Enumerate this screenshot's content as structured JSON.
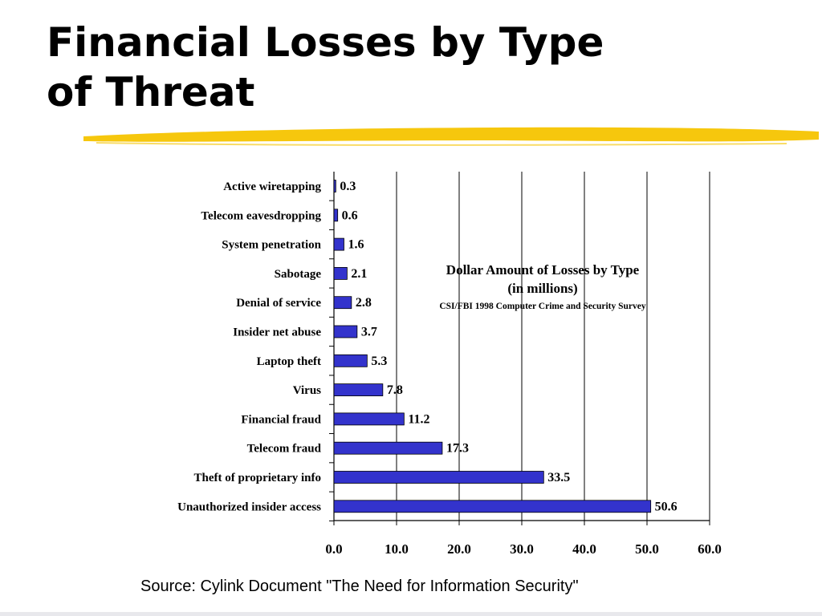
{
  "slide": {
    "title_line1": "Financial Losses by Type",
    "title_line2": "of Threat",
    "source": "Source: Cylink Document \"The Need for Information Security\"",
    "highlight_color": "#f5c400"
  },
  "chart_data": {
    "type": "bar",
    "orientation": "horizontal",
    "title": "Dollar Amount of Losses by Type",
    "subtitle": "(in millions)",
    "note": "CSI/FBI 1998 Computer Crime and Security Survey",
    "categories": [
      "Active wiretapping",
      "Telecom eavesdropping",
      "System penetration",
      "Sabotage",
      "Denial of service",
      "Insider net abuse",
      "Laptop theft",
      "Virus",
      "Financial fraud",
      "Telecom fraud",
      "Theft of proprietary info",
      "Unauthorized insider access"
    ],
    "values": [
      0.3,
      0.6,
      1.6,
      2.1,
      2.8,
      3.7,
      5.3,
      7.8,
      11.2,
      17.3,
      33.5,
      50.6
    ],
    "value_labels": [
      "0.3",
      "0.6",
      "1.6",
      "2.1",
      "2.8",
      "3.7",
      "5.3",
      "7.8",
      "11.2",
      "17.3",
      "33.5",
      "50.6"
    ],
    "xlim": [
      0,
      60
    ],
    "xticks": [
      "0.0",
      "10.0",
      "20.0",
      "30.0",
      "40.0",
      "50.0",
      "60.0"
    ],
    "grid": "vertical",
    "bar_color": "#3333cc"
  }
}
